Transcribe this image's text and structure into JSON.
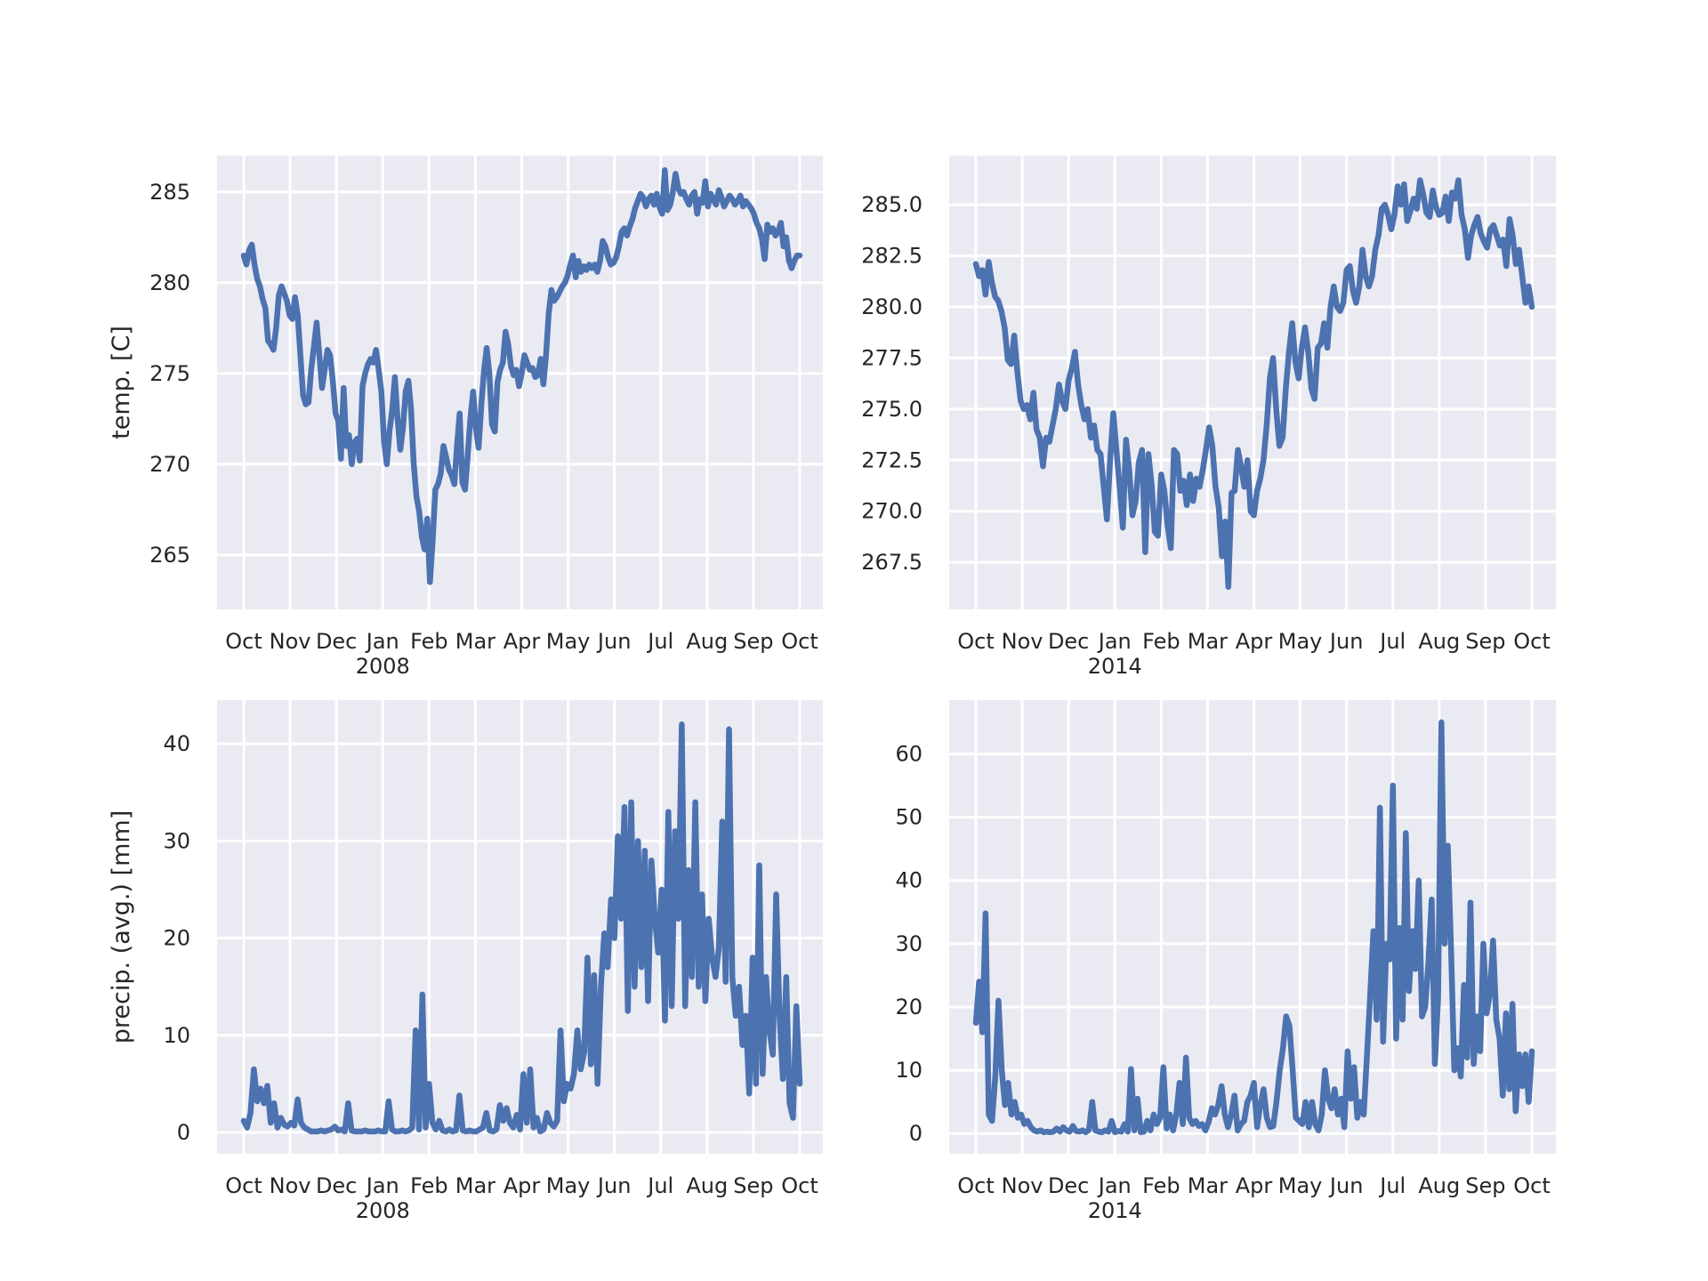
{
  "colors": {
    "line": "#4c72b0",
    "plot_background": "#eaeaf2",
    "grid": "#ffffff"
  },
  "chart_data": [
    {
      "type": "line",
      "xlabel": "2008",
      "ylabel": "temp. [C]",
      "x_tick_labels": [
        "Oct",
        "Nov",
        "Dec",
        "Jan",
        "Feb",
        "Mar",
        "Apr",
        "May",
        "Jun",
        "Jul",
        "Aug",
        "Sep",
        "Oct"
      ],
      "y_ticks": [
        265,
        270,
        275,
        280,
        285
      ],
      "y_tick_labels": [
        "265",
        "270",
        "275",
        "280",
        "285"
      ],
      "ylim": [
        262,
        287
      ],
      "grid": true,
      "series": [
        {
          "values": [
            281.5,
            281.0,
            281.8,
            282.1,
            281.0,
            280.2,
            279.8,
            279.1,
            278.6,
            276.8,
            276.6,
            276.3,
            277.5,
            279.3,
            279.8,
            279.4,
            279.0,
            278.2,
            278.0,
            279.2,
            278.2,
            276.0,
            273.8,
            273.3,
            273.4,
            275.2,
            276.5,
            277.8,
            276.0,
            274.2,
            275.2,
            276.3,
            276.0,
            274.6,
            272.8,
            272.4,
            270.3,
            274.2,
            271.0,
            271.6,
            270.0,
            271.2,
            271.4,
            270.2,
            274.3,
            275.0,
            275.5,
            275.8,
            275.6,
            276.3,
            275.2,
            274.0,
            271.2,
            270.0,
            271.8,
            273.0,
            274.8,
            272.5,
            270.8,
            272.0,
            274.0,
            274.6,
            273.0,
            270.0,
            268.2,
            267.4,
            266.0,
            265.3,
            267.0,
            263.5,
            265.8,
            268.6,
            268.9,
            269.5,
            271.0,
            270.4,
            269.7,
            269.4,
            268.9,
            271.0,
            272.8,
            269.0,
            268.6,
            270.5,
            272.6,
            274.0,
            272.0,
            270.9,
            273.2,
            275.1,
            276.4,
            275.0,
            272.2,
            271.8,
            274.5,
            275.2,
            275.6,
            277.3,
            276.6,
            275.4,
            274.9,
            275.2,
            274.3,
            275.0,
            276.0,
            275.6,
            275.2,
            275.3,
            274.8,
            274.9,
            275.8,
            274.4,
            276.0,
            278.3,
            279.6,
            279.0,
            279.2,
            279.5,
            279.8,
            280.0,
            280.4,
            281.0,
            281.5,
            280.3,
            281.2,
            280.6,
            280.9,
            280.7,
            281.0,
            280.8,
            281.0,
            280.6,
            281.2,
            282.3,
            282.0,
            281.4,
            281.0,
            281.1,
            281.4,
            282.0,
            282.8,
            283.0,
            282.6,
            283.1,
            283.5,
            284.1,
            284.5,
            284.9,
            284.7,
            284.2,
            284.6,
            284.8,
            284.3,
            284.9,
            284.2,
            283.8,
            286.2,
            284.0,
            284.3,
            285.0,
            286.0,
            285.2,
            284.9,
            285.0,
            284.6,
            284.3,
            284.8,
            285.0,
            283.8,
            284.6,
            284.4,
            285.6,
            284.2,
            284.9,
            284.6,
            284.3,
            285.1,
            284.7,
            284.2,
            284.5,
            284.8,
            284.6,
            284.3,
            284.5,
            284.8,
            284.2,
            284.5,
            284.3,
            284.1,
            283.8,
            283.3,
            283.0,
            282.4,
            281.3,
            283.2,
            282.8,
            283.0,
            282.6,
            282.8,
            283.3,
            282.0,
            282.5,
            281.2,
            280.8,
            281.2,
            281.5,
            281.5
          ]
        }
      ]
    },
    {
      "type": "line",
      "xlabel": "2014",
      "ylabel": "",
      "x_tick_labels": [
        "Oct",
        "Nov",
        "Dec",
        "Jan",
        "Feb",
        "Mar",
        "Apr",
        "May",
        "Jun",
        "Jul",
        "Aug",
        "Sep",
        "Oct"
      ],
      "y_ticks": [
        267.5,
        270.0,
        272.5,
        275.0,
        277.5,
        280.0,
        282.5,
        285.0
      ],
      "y_tick_labels": [
        "267.5",
        "270.0",
        "272.5",
        "275.0",
        "277.5",
        "280.0",
        "282.5",
        "285.0"
      ],
      "ylim": [
        265.2,
        287.4
      ],
      "grid": true,
      "series": [
        {
          "values": [
            282.1,
            281.5,
            281.8,
            280.6,
            282.2,
            281.2,
            280.5,
            280.3,
            279.8,
            279.0,
            277.4,
            277.2,
            278.6,
            276.8,
            275.4,
            275.0,
            275.2,
            274.5,
            275.8,
            274.0,
            273.6,
            272.2,
            273.6,
            273.4,
            274.2,
            275.0,
            276.2,
            275.4,
            275.0,
            276.4,
            277.0,
            277.8,
            276.2,
            275.2,
            274.5,
            275.0,
            273.6,
            274.2,
            273.0,
            272.8,
            271.2,
            269.6,
            272.5,
            274.8,
            273.0,
            271.2,
            269.2,
            273.5,
            272.0,
            269.8,
            270.5,
            272.4,
            273.0,
            268.0,
            272.8,
            271.3,
            269.0,
            268.8,
            271.8,
            271.0,
            269.3,
            268.2,
            273.0,
            272.8,
            271.0,
            271.5,
            270.3,
            271.8,
            270.5,
            271.6,
            271.2,
            272.0,
            273.0,
            274.1,
            273.2,
            271.2,
            270.2,
            267.8,
            269.5,
            266.3,
            270.9,
            271.0,
            273.0,
            272.2,
            271.2,
            272.5,
            270.0,
            269.8,
            271.0,
            271.6,
            272.5,
            274.2,
            276.5,
            277.5,
            275.0,
            273.2,
            273.6,
            276.0,
            277.8,
            279.2,
            277.3,
            276.5,
            278.0,
            279.0,
            277.8,
            276.0,
            275.5,
            278.0,
            278.2,
            279.2,
            278.0,
            280.0,
            281.0,
            280.0,
            279.8,
            280.2,
            281.8,
            282.0,
            280.8,
            280.2,
            281.0,
            282.8,
            281.5,
            281.0,
            281.5,
            282.8,
            283.5,
            284.8,
            285.0,
            284.5,
            283.8,
            284.5,
            285.9,
            285.0,
            286.0,
            284.2,
            284.7,
            285.3,
            284.8,
            286.2,
            285.5,
            284.6,
            284.4,
            285.7,
            284.9,
            284.5,
            284.6,
            285.4,
            284.2,
            285.6,
            285.3,
            286.2,
            284.5,
            283.8,
            282.4,
            283.5,
            284.0,
            284.4,
            283.6,
            283.2,
            282.9,
            283.8,
            284.0,
            283.5,
            283.0,
            283.3,
            282.0,
            284.3,
            283.5,
            282.1,
            282.8,
            281.5,
            280.2,
            281.0,
            280.0
          ]
        }
      ]
    },
    {
      "type": "line",
      "xlabel": "2008",
      "ylabel": "precip. (avg.) [mm]",
      "x_tick_labels": [
        "Oct",
        "Nov",
        "Dec",
        "Jan",
        "Feb",
        "Mar",
        "Apr",
        "May",
        "Jun",
        "Jul",
        "Aug",
        "Sep",
        "Oct"
      ],
      "y_ticks": [
        0,
        10,
        20,
        30,
        40
      ],
      "y_tick_labels": [
        "0",
        "10",
        "20",
        "30",
        "40"
      ],
      "ylim": [
        -2.2,
        44.5
      ],
      "grid": true,
      "series": [
        {
          "values": [
            1.2,
            0.5,
            2.0,
            6.5,
            3.2,
            4.5,
            3.0,
            4.8,
            1.0,
            3.0,
            0.5,
            1.5,
            0.8,
            0.6,
            1.0,
            0.7,
            3.4,
            1.0,
            0.5,
            0.3,
            0.1,
            0.1,
            0.1,
            0.2,
            0.1,
            0.2,
            0.3,
            0.6,
            0.2,
            0.3,
            0.1,
            3.0,
            0.2,
            0.1,
            0.1,
            0.1,
            0.2,
            0.1,
            0.1,
            0.1,
            0.2,
            0.1,
            0.1,
            3.2,
            0.3,
            0.1,
            0.1,
            0.2,
            0.1,
            0.2,
            0.5,
            10.5,
            0.3,
            14.2,
            0.5,
            5.0,
            1.0,
            0.3,
            1.2,
            0.2,
            0.1,
            0.3,
            0.1,
            0.2,
            3.8,
            0.2,
            0.1,
            0.2,
            0.1,
            0.1,
            0.3,
            0.5,
            2.0,
            0.2,
            0.1,
            0.3,
            2.8,
            1.2,
            2.5,
            1.0,
            0.5,
            1.8,
            0.3,
            6.0,
            1.0,
            6.5,
            0.5,
            1.5,
            0.1,
            0.3,
            2.0,
            1.0,
            0.6,
            1.2,
            10.5,
            3.2,
            5.0,
            4.5,
            6.0,
            10.5,
            6.5,
            8.2,
            18.0,
            7.0,
            16.2,
            5.0,
            15.0,
            20.5,
            17.0,
            24.0,
            20.0,
            30.5,
            22.0,
            33.5,
            12.5,
            34.0,
            15.0,
            30.0,
            17.0,
            29.0,
            13.5,
            28.0,
            22.0,
            18.5,
            25.0,
            11.5,
            33.0,
            13.0,
            31.0,
            22.0,
            42.0,
            13.0,
            27.0,
            16.0,
            34.0,
            15.0,
            24.5,
            13.5,
            22.0,
            18.0,
            16.0,
            19.0,
            32.0,
            15.5,
            41.5,
            16.0,
            12.0,
            15.0,
            9.0,
            12.0,
            4.0,
            18.0,
            5.0,
            27.5,
            6.0,
            16.0,
            10.5,
            8.0,
            24.5,
            12.0,
            5.5,
            16.0,
            3.0,
            1.5,
            13.0,
            5.0
          ]
        }
      ]
    },
    {
      "type": "line",
      "xlabel": "2014",
      "ylabel": "",
      "x_tick_labels": [
        "Oct",
        "Nov",
        "Dec",
        "Jan",
        "Feb",
        "Mar",
        "Apr",
        "May",
        "Jun",
        "Jul",
        "Aug",
        "Sep",
        "Oct"
      ],
      "y_ticks": [
        0,
        10,
        20,
        30,
        40,
        50,
        60
      ],
      "y_tick_labels": [
        "0",
        "10",
        "20",
        "30",
        "40",
        "50",
        "60"
      ],
      "ylim": [
        -3.2,
        68.5
      ],
      "grid": true,
      "series": [
        {
          "values": [
            17.5,
            24.0,
            16.0,
            34.8,
            3.0,
            2.0,
            9.0,
            21.0,
            10.0,
            4.5,
            8.0,
            3.0,
            5.0,
            2.5,
            3.0,
            1.5,
            2.0,
            1.0,
            0.5,
            0.3,
            0.5,
            0.2,
            0.3,
            0.2,
            0.3,
            0.8,
            0.3,
            1.0,
            0.5,
            0.3,
            1.2,
            0.4,
            0.3,
            0.5,
            0.2,
            0.6,
            5.0,
            0.5,
            0.3,
            0.2,
            0.5,
            0.3,
            2.0,
            0.2,
            0.4,
            0.3,
            1.5,
            0.3,
            10.2,
            0.5,
            5.5,
            0.2,
            0.3,
            2.0,
            0.5,
            3.0,
            1.5,
            2.5,
            10.5,
            0.8,
            3.0,
            0.5,
            3.0,
            8.0,
            1.5,
            12.0,
            2.5,
            1.5,
            2.0,
            1.2,
            1.5,
            0.5,
            1.8,
            4.0,
            3.0,
            4.5,
            7.5,
            3.0,
            1.0,
            3.0,
            6.0,
            0.5,
            1.5,
            2.0,
            5.0,
            6.0,
            8.0,
            1.0,
            4.5,
            7.0,
            2.5,
            1.0,
            1.2,
            5.0,
            10.0,
            13.5,
            18.5,
            17.0,
            10.0,
            2.5,
            2.0,
            1.5,
            5.0,
            1.0,
            5.0,
            1.5,
            0.5,
            3.0,
            10.0,
            5.5,
            4.0,
            7.0,
            3.0,
            5.5,
            1.0,
            13.0,
            5.5,
            10.5,
            2.5,
            5.0,
            3.0,
            12.5,
            22.0,
            32.0,
            18.0,
            51.5,
            14.5,
            30.0,
            27.5,
            55.0,
            15.0,
            32.5,
            18.0,
            47.5,
            22.5,
            32.0,
            26.0,
            40.0,
            18.5,
            20.0,
            27.0,
            37.0,
            11.0,
            21.5,
            65.0,
            30.0,
            45.5,
            29.0,
            10.0,
            13.5,
            9.0,
            23.5,
            12.0,
            36.5,
            11.0,
            18.5,
            13.0,
            30.0,
            19.0,
            22.0,
            30.5,
            18.0,
            15.0,
            6.0,
            19.0,
            7.0,
            20.5,
            3.5,
            12.5,
            7.5,
            12.5,
            5.0,
            13.0
          ]
        }
      ]
    }
  ]
}
